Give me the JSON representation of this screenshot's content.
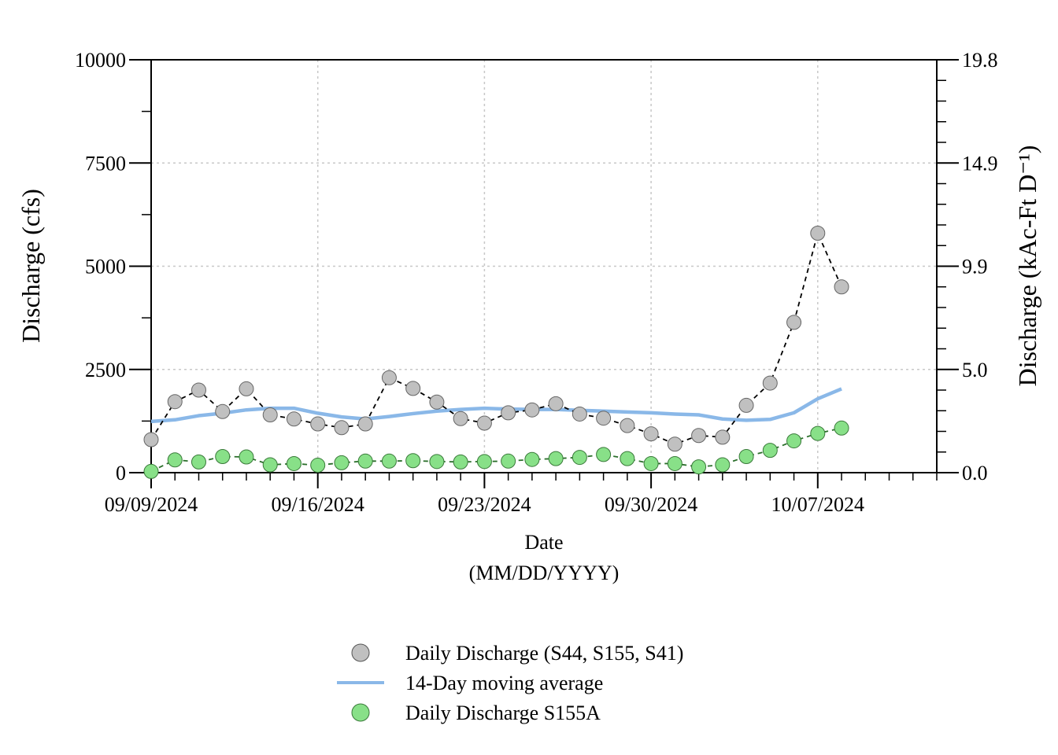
{
  "chart_data": {
    "type": "line",
    "xlabel": "Date",
    "xlabel_sub": "(MM/DD/YYYY)",
    "ylabel": "Discharge (cfs)",
    "ylabel_right": "Discharge (kAc-Ft D⁻¹)",
    "ylim": [
      0,
      10000
    ],
    "yticks": [
      0,
      2500,
      5000,
      7500,
      10000
    ],
    "yticks_right": [
      "0.0",
      "5.0",
      "9.9",
      "14.9",
      "19.8"
    ],
    "grid": true,
    "legend_position": "bottom",
    "x_start": "09/09/2024",
    "xlim_days": [
      0,
      33
    ],
    "xtick_labels": [
      "09/09/2024",
      "09/16/2024",
      "09/23/2024",
      "09/30/2024",
      "10/07/2024"
    ],
    "xtick_days": [
      0,
      7,
      14,
      21,
      28
    ],
    "series": [
      {
        "name": "Daily Discharge (S44, S155, S41)",
        "style": "marker-dashed",
        "color": "#c0c0c0",
        "line_color": "#000000",
        "x_days": [
          0,
          1,
          2,
          3,
          4,
          5,
          6,
          7,
          8,
          9,
          10,
          11,
          12,
          13,
          14,
          15,
          16,
          17,
          18,
          19,
          20,
          21,
          22,
          23,
          24,
          25,
          26,
          27,
          28,
          29
        ],
        "values": [
          800,
          1720,
          2000,
          1480,
          2030,
          1400,
          1300,
          1180,
          1090,
          1180,
          2300,
          2040,
          1710,
          1310,
          1200,
          1450,
          1520,
          1670,
          1420,
          1320,
          1140,
          940,
          690,
          900,
          860,
          1630,
          2170,
          3640,
          5800,
          4500
        ]
      },
      {
        "name": "14-Day moving average",
        "style": "line",
        "color": "#8ab8e8",
        "x_days": [
          0,
          1,
          2,
          3,
          4,
          5,
          6,
          7,
          8,
          9,
          10,
          11,
          12,
          13,
          14,
          15,
          16,
          17,
          18,
          19,
          20,
          21,
          22,
          23,
          24,
          25,
          26,
          27,
          28,
          29
        ],
        "values": [
          1240,
          1280,
          1380,
          1440,
          1520,
          1560,
          1560,
          1440,
          1350,
          1300,
          1360,
          1430,
          1490,
          1530,
          1560,
          1540,
          1530,
          1530,
          1510,
          1490,
          1470,
          1450,
          1420,
          1400,
          1300,
          1270,
          1290,
          1450,
          1790,
          2030
        ]
      },
      {
        "name": "Daily Discharge S155A",
        "style": "marker-dashed",
        "color": "#88e088",
        "line_color": "#2a6e2a",
        "x_days": [
          0,
          1,
          2,
          3,
          4,
          5,
          6,
          7,
          8,
          9,
          10,
          11,
          12,
          13,
          14,
          15,
          16,
          17,
          18,
          19,
          20,
          21,
          22,
          23,
          24,
          25,
          26,
          27,
          28,
          29
        ],
        "values": [
          30,
          310,
          260,
          390,
          380,
          190,
          220,
          180,
          240,
          280,
          280,
          290,
          270,
          260,
          270,
          280,
          320,
          340,
          370,
          440,
          340,
          220,
          220,
          140,
          190,
          390,
          540,
          770,
          950,
          1080
        ]
      }
    ]
  }
}
